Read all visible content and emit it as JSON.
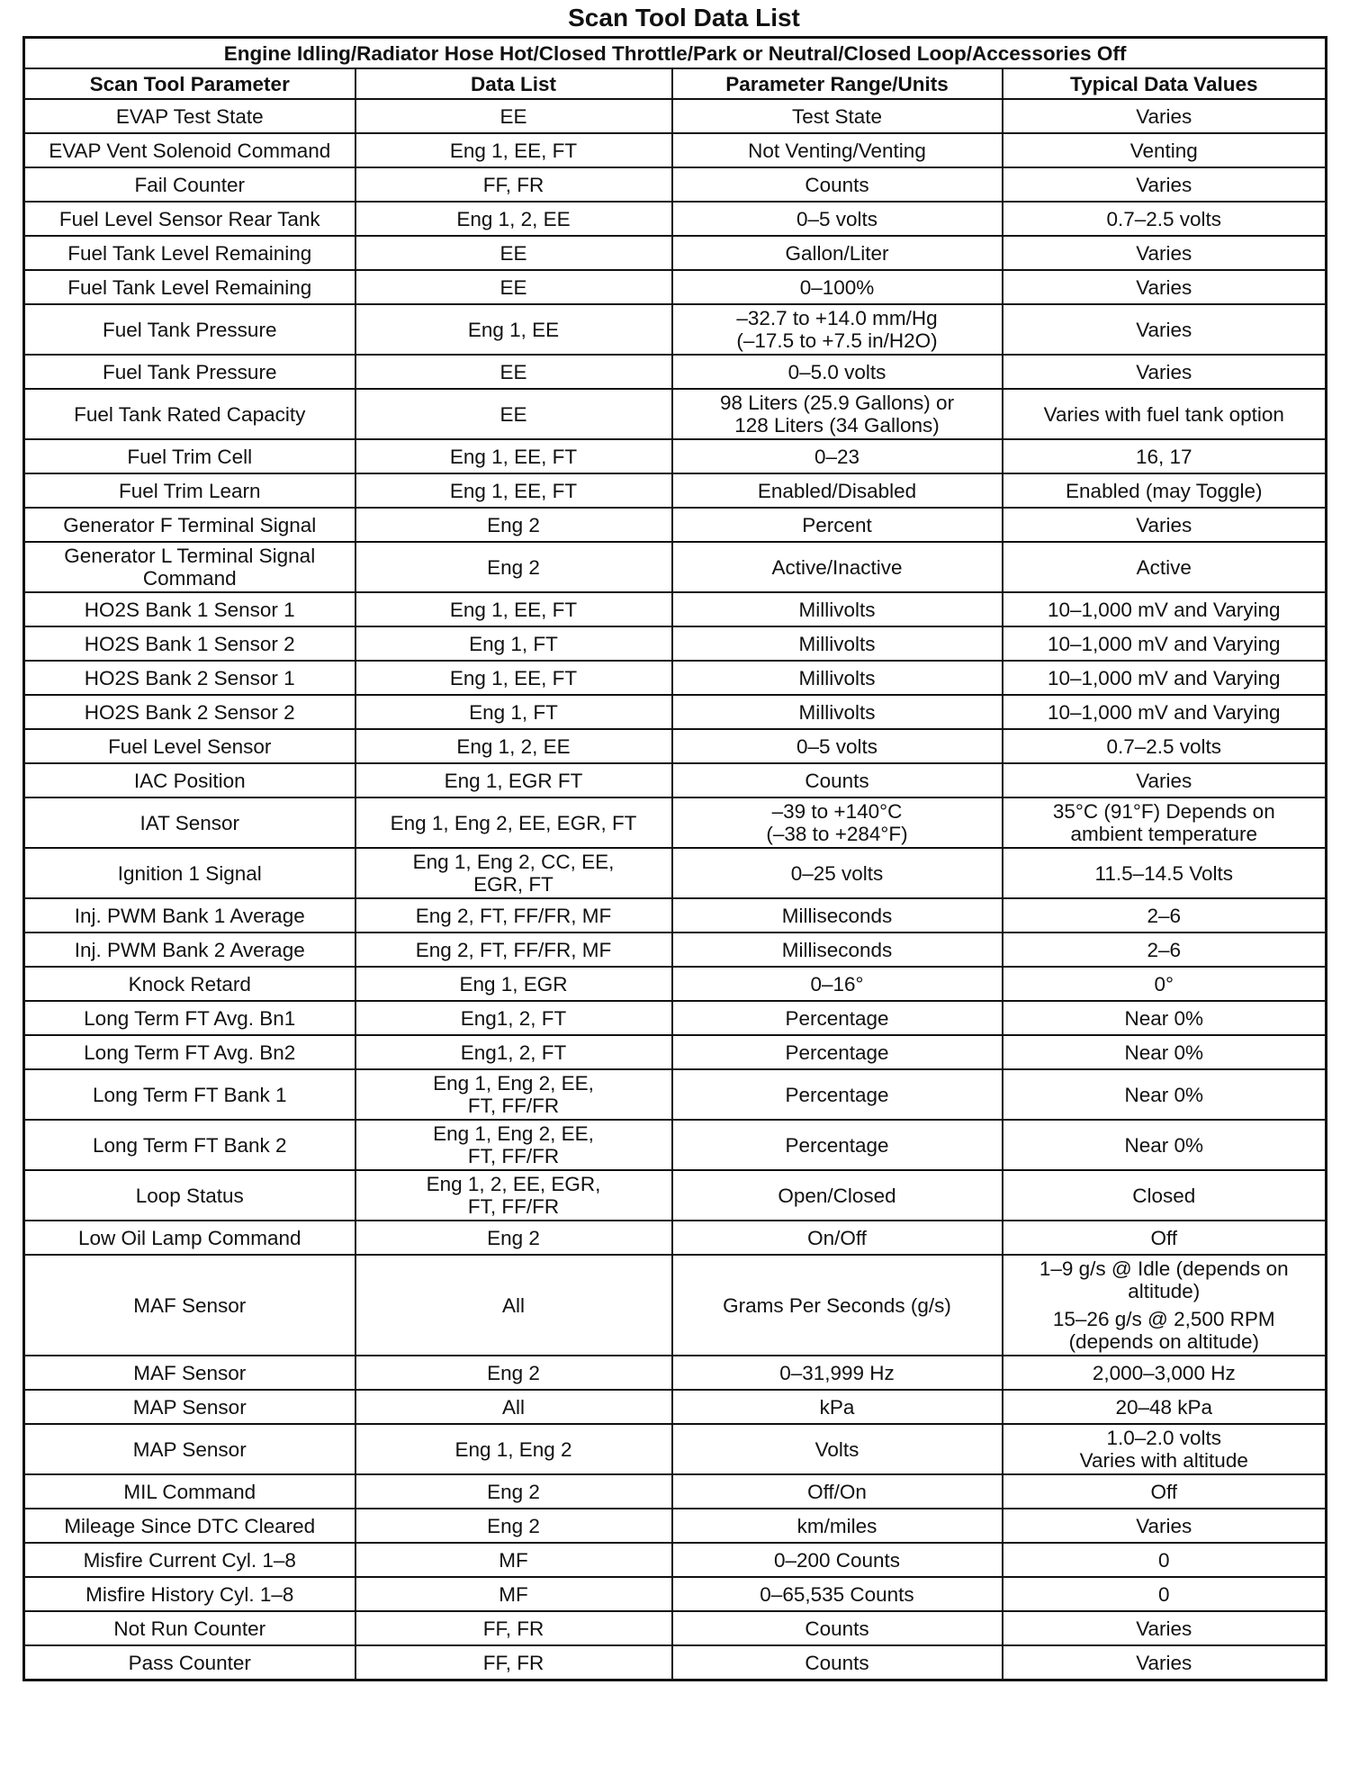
{
  "title": "Scan Tool Data List",
  "table": {
    "condition": "Engine Idling/Radiator Hose Hot/Closed Throttle/Park or Neutral/Closed Loop/Accessories Off",
    "columns": [
      "Scan Tool Parameter",
      "Data List",
      "Parameter Range/Units",
      "Typical Data Values"
    ],
    "rows": [
      [
        "EVAP Test State",
        "EE",
        "Test State",
        "Varies"
      ],
      [
        "EVAP Vent Solenoid Command",
        "Eng 1, EE, FT",
        "Not Venting/Venting",
        "Venting"
      ],
      [
        "Fail Counter",
        "FF, FR",
        "Counts",
        "Varies"
      ],
      [
        "Fuel Level Sensor Rear Tank",
        "Eng 1, 2, EE",
        "0–5 volts",
        "0.7–2.5 volts"
      ],
      [
        "Fuel Tank Level Remaining",
        "EE",
        "Gallon/Liter",
        "Varies"
      ],
      [
        "Fuel Tank Level Remaining",
        "EE",
        "0–100%",
        "Varies"
      ],
      [
        "Fuel Tank Pressure",
        "Eng 1, EE",
        [
          "–32.7 to +14.0 mm/Hg",
          "(–17.5 to +7.5 in/H2O)"
        ],
        "Varies"
      ],
      [
        "Fuel Tank Pressure",
        "EE",
        "0–5.0 volts",
        "Varies"
      ],
      [
        "Fuel Tank Rated Capacity",
        "EE",
        [
          "98 Liters (25.9 Gallons) or",
          "128 Liters (34 Gallons)"
        ],
        "Varies with fuel tank option"
      ],
      [
        "Fuel Trim Cell",
        "Eng 1, EE, FT",
        "0–23",
        "16, 17"
      ],
      [
        "Fuel Trim Learn",
        "Eng 1, EE, FT",
        "Enabled/Disabled",
        "Enabled (may Toggle)"
      ],
      [
        "Generator F Terminal Signal",
        "Eng 2",
        "Percent",
        "Varies"
      ],
      [
        "Generator L Terminal Signal Command",
        "Eng 2",
        "Active/Inactive",
        "Active"
      ],
      [
        "HO2S Bank 1 Sensor 1",
        "Eng 1, EE, FT",
        "Millivolts",
        "10–1,000 mV and Varying"
      ],
      [
        "HO2S Bank 1 Sensor 2",
        "Eng 1, FT",
        "Millivolts",
        "10–1,000 mV and Varying"
      ],
      [
        "HO2S Bank 2 Sensor 1",
        "Eng 1, EE, FT",
        "Millivolts",
        "10–1,000 mV and Varying"
      ],
      [
        "HO2S Bank 2 Sensor 2",
        "Eng 1, FT",
        "Millivolts",
        "10–1,000 mV and Varying"
      ],
      [
        "Fuel Level Sensor",
        "Eng 1, 2, EE",
        "0–5 volts",
        "0.7–2.5 volts"
      ],
      [
        "IAC Position",
        "Eng 1, EGR FT",
        "Counts",
        "Varies"
      ],
      [
        "IAT Sensor",
        "Eng 1, Eng 2, EE, EGR, FT",
        [
          "–39 to +140°C",
          "(–38 to +284°F)"
        ],
        [
          "35°C (91°F) Depends on",
          "ambient temperature"
        ]
      ],
      [
        "Ignition 1 Signal",
        [
          "Eng 1, Eng 2, CC, EE,",
          "EGR, FT"
        ],
        "0–25 volts",
        "11.5–14.5 Volts"
      ],
      [
        "Inj. PWM Bank 1 Average",
        "Eng 2, FT, FF/FR, MF",
        "Milliseconds",
        "2–6"
      ],
      [
        "Inj. PWM Bank 2 Average",
        "Eng 2, FT, FF/FR, MF",
        "Milliseconds",
        "2–6"
      ],
      [
        "Knock Retard",
        "Eng 1, EGR",
        "0–16°",
        "0°"
      ],
      [
        "Long Term FT Avg. Bn1",
        "Eng1, 2, FT",
        "Percentage",
        "Near 0%"
      ],
      [
        "Long Term FT Avg. Bn2",
        "Eng1, 2, FT",
        "Percentage",
        "Near 0%"
      ],
      [
        "Long Term FT Bank 1",
        [
          "Eng 1, Eng 2, EE,",
          "FT, FF/FR"
        ],
        "Percentage",
        "Near 0%"
      ],
      [
        "Long Term FT Bank 2",
        [
          "Eng 1, Eng 2, EE,",
          "FT, FF/FR"
        ],
        "Percentage",
        "Near 0%"
      ],
      [
        "Loop Status",
        [
          "Eng 1, 2, EE, EGR,",
          "FT, FF/FR"
        ],
        "Open/Closed",
        "Closed"
      ],
      [
        "Low Oil Lamp Command",
        "Eng 2",
        "On/Off",
        "Off"
      ],
      [
        "MAF Sensor",
        "All",
        "Grams Per Seconds (g/s)",
        [
          "1–9 g/s @ Idle (depends on altitude)",
          "15–26 g/s @ 2,500 RPM (depends on altitude)"
        ]
      ],
      [
        "MAF Sensor",
        "Eng 2",
        "0–31,999 Hz",
        "2,000–3,000 Hz"
      ],
      [
        "MAP Sensor",
        "All",
        "kPa",
        "20–48 kPa"
      ],
      [
        "MAP Sensor",
        "Eng 1, Eng 2",
        "Volts",
        [
          "1.0–2.0 volts",
          "Varies with altitude"
        ]
      ],
      [
        "MIL Command",
        "Eng 2",
        "Off/On",
        "Off"
      ],
      [
        "Mileage Since DTC Cleared",
        "Eng 2",
        "km/miles",
        "Varies"
      ],
      [
        "Misfire Current Cyl. 1–8",
        "MF",
        "0–200 Counts",
        "0"
      ],
      [
        "Misfire History Cyl. 1–8",
        "MF",
        "0–65,535 Counts",
        "0"
      ],
      [
        "Not Run Counter",
        "FF, FR",
        "Counts",
        "Varies"
      ],
      [
        "Pass Counter",
        "FF, FR",
        "Counts",
        "Varies"
      ]
    ]
  }
}
